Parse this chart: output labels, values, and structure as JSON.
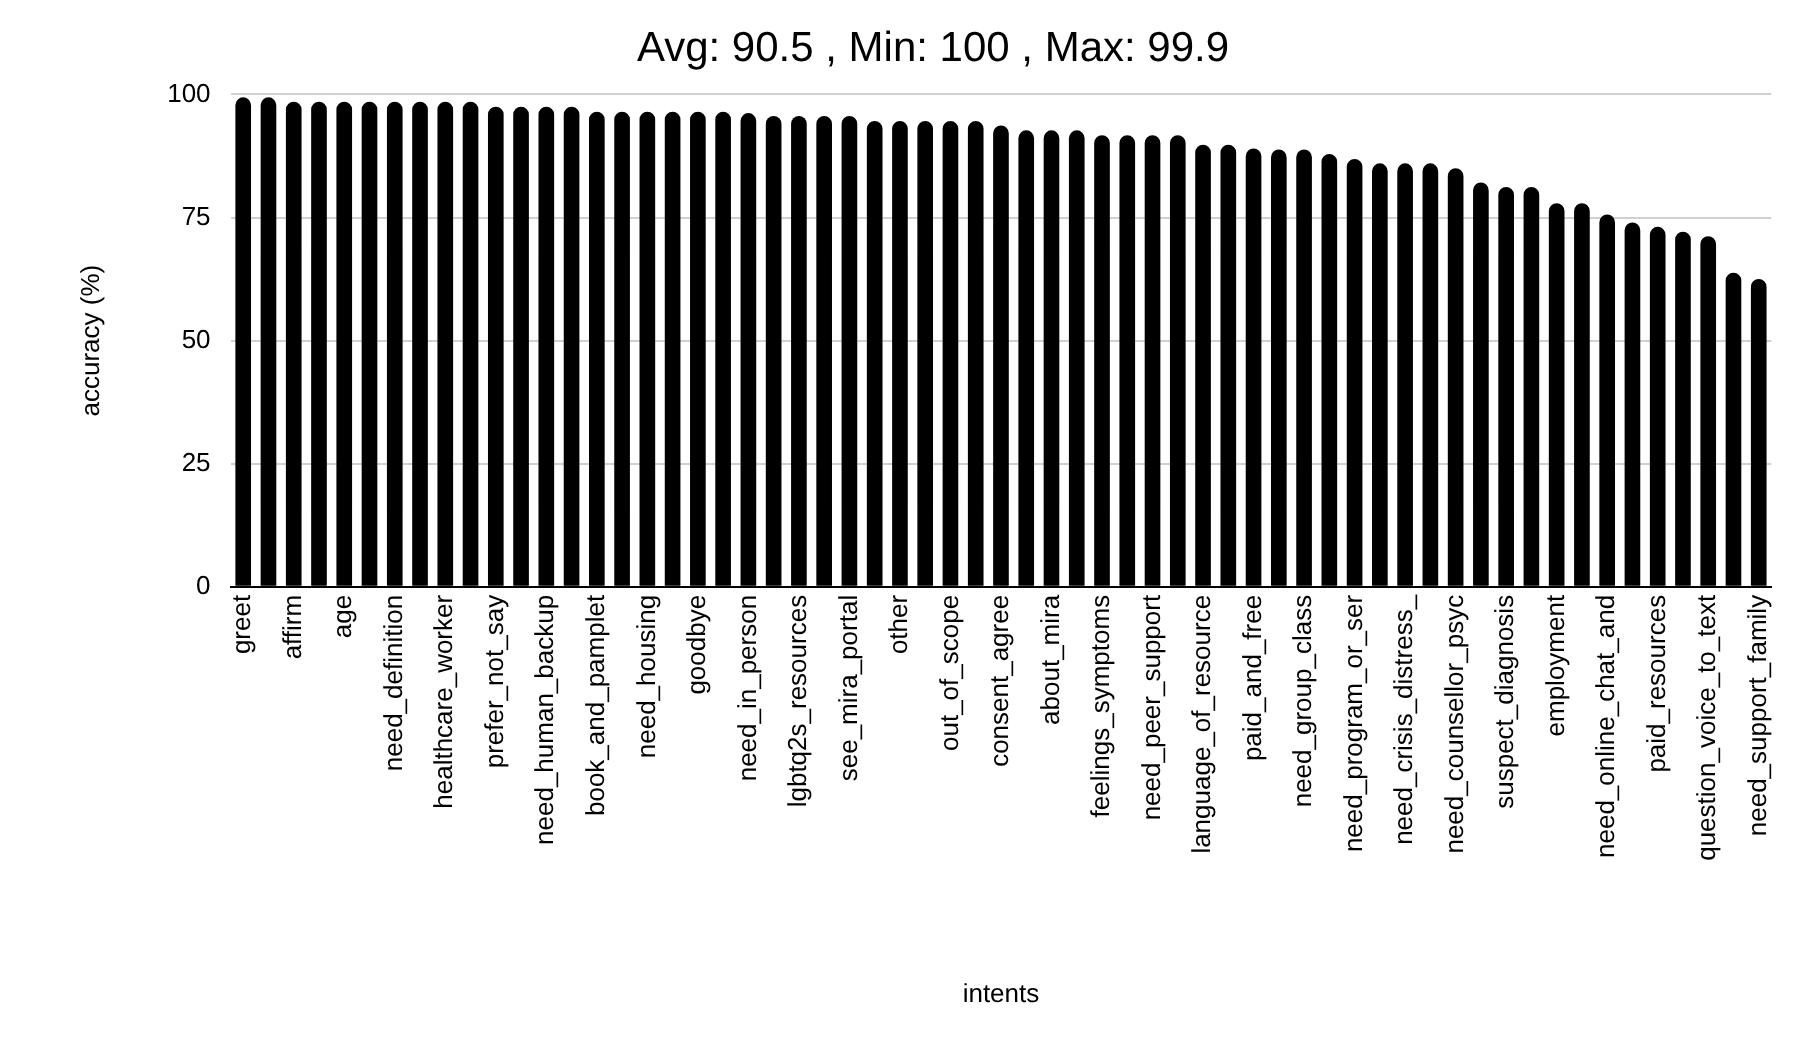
{
  "chart_data": {
    "type": "bar",
    "title": "Avg: 90.5 , Min: 100 , Max: 99.9",
    "xlabel": "intents",
    "ylabel": "accuracy (%)",
    "categories": [
      "greet",
      null,
      "affirm",
      null,
      "age",
      null,
      "need_definition",
      null,
      "healthcare_worker",
      null,
      "prefer_not_say",
      null,
      "need_human_backup",
      null,
      "book_and_pamplet",
      null,
      "need_housing",
      null,
      "goodbye",
      null,
      "need_in_person",
      null,
      "lgbtq2s_resources",
      null,
      "see_mira_portal",
      null,
      "other",
      null,
      "out_of_scope",
      null,
      "consent_agree",
      null,
      "about_mira",
      null,
      "feelings_symptoms",
      null,
      "need_peer_support",
      null,
      "language_of_resource",
      null,
      "paid_and_free",
      null,
      "need_group_class",
      null,
      "need_program_or_ser",
      null,
      "need_crisis_distress_",
      null,
      "need_counsellor_psyc",
      null,
      "suspect_diagnosis",
      null,
      "employment",
      null,
      "need_online_chat_and",
      null,
      "paid_resources",
      null,
      "question_voice_to_text",
      null,
      "need_support_family"
    ],
    "values": [
      99.4,
      99.4,
      98.5,
      98.5,
      98.5,
      98.5,
      98.5,
      98.5,
      98.5,
      98.5,
      97.5,
      97.5,
      97.5,
      97.5,
      96.5,
      96.5,
      96.5,
      96.5,
      96.5,
      96.5,
      96.2,
      95.6,
      95.6,
      95.6,
      95.6,
      94.6,
      94.6,
      94.6,
      94.6,
      94.6,
      93.7,
      92.7,
      92.7,
      92.7,
      91.7,
      91.7,
      91.7,
      91.7,
      89.8,
      89.8,
      89.0,
      88.8,
      88.8,
      87.9,
      86.9,
      86.0,
      86.0,
      86.0,
      85.0,
      82.1,
      81.2,
      81.2,
      77.9,
      77.9,
      75.6,
      74.0,
      73.1,
      72.1,
      71.2,
      63.8,
      62.5
    ],
    "color": "#000000",
    "ylim": [
      0,
      100
    ],
    "yticks": [
      0,
      25,
      50,
      75,
      100
    ],
    "grid": "y"
  }
}
